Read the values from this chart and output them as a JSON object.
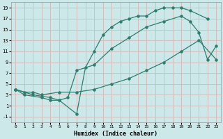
{
  "xlabel": "Humidex (Indice chaleur)",
  "bg_color": "#cce8e8",
  "grid_color": "#d4b8b8",
  "line_color": "#2e7d6e",
  "xlim": [
    -0.5,
    23.5
  ],
  "ylim": [
    -2,
    20
  ],
  "xticks": [
    0,
    1,
    2,
    3,
    4,
    5,
    6,
    7,
    8,
    9,
    10,
    11,
    12,
    13,
    14,
    15,
    16,
    17,
    18,
    19,
    20,
    21,
    22,
    23
  ],
  "yticks": [
    -1,
    1,
    3,
    5,
    7,
    9,
    11,
    13,
    15,
    17,
    19
  ],
  "line1_x": [
    0,
    1,
    2,
    3,
    5,
    7,
    9,
    11,
    13,
    15,
    17,
    19,
    21,
    23
  ],
  "line1_y": [
    4,
    3.5,
    3.5,
    3.0,
    3.5,
    3.5,
    4.0,
    5.0,
    6.0,
    7.5,
    9.0,
    11.0,
    13.0,
    9.5
  ],
  "line2_x": [
    0,
    1,
    3,
    4,
    5,
    7,
    8,
    9,
    10,
    11,
    12,
    13,
    14,
    15,
    16,
    17,
    18,
    19,
    20,
    22
  ],
  "line2_y": [
    4,
    3.0,
    2.5,
    2.0,
    2.0,
    -0.5,
    8.0,
    11.0,
    14.0,
    15.5,
    16.5,
    17.0,
    17.5,
    17.5,
    18.5,
    19.0,
    19.0,
    19.0,
    18.5,
    17.0
  ],
  "line3_x": [
    0,
    2,
    4,
    5,
    6,
    7,
    9,
    11,
    13,
    15,
    17,
    19,
    20,
    21,
    22,
    23
  ],
  "line3_y": [
    4,
    3.0,
    2.5,
    2.0,
    2.5,
    7.5,
    8.5,
    11.5,
    13.5,
    15.5,
    16.5,
    17.5,
    16.5,
    14.5,
    9.5,
    12.0
  ]
}
